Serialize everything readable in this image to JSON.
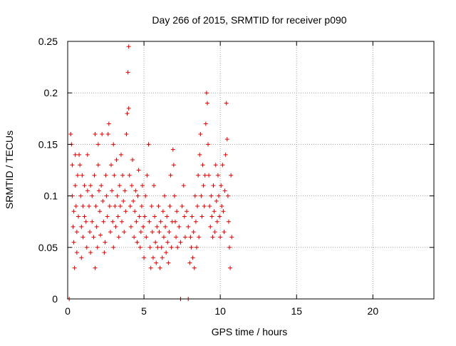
{
  "chart_data": {
    "type": "scatter",
    "title": "Day 266 of 2015, SRMTID for receiver p090",
    "xlabel": "GPS time / hours",
    "ylabel": "SRMTID / TECUs",
    "xlim": [
      0,
      24
    ],
    "ylim": [
      0,
      0.25
    ],
    "grid": true,
    "marker": "+",
    "color": "#e00000",
    "x_ticks": [
      {
        "value": 0,
        "label": "0"
      },
      {
        "value": 5,
        "label": "5"
      },
      {
        "value": 10,
        "label": "10"
      },
      {
        "value": 15,
        "label": "15"
      },
      {
        "value": 20,
        "label": "20"
      }
    ],
    "y_ticks": [
      {
        "value": 0,
        "label": "0"
      },
      {
        "value": 0.05,
        "label": "0.05"
      },
      {
        "value": 0.1,
        "label": "0.1"
      },
      {
        "value": 0.15,
        "label": "0.15"
      },
      {
        "value": 0.2,
        "label": "0.2"
      },
      {
        "value": 0.25,
        "label": "0.25"
      }
    ],
    "points": [
      [
        0.1,
        0.0
      ],
      [
        7.4,
        0.0
      ],
      [
        7.9,
        0.0
      ],
      [
        0.2,
        0.16
      ],
      [
        0.25,
        0.15
      ],
      [
        0.3,
        0.1
      ],
      [
        0.3,
        0.13
      ],
      [
        0.35,
        0.07
      ],
      [
        0.4,
        0.085
      ],
      [
        0.4,
        0.055
      ],
      [
        0.45,
        0.03
      ],
      [
        0.5,
        0.11
      ],
      [
        0.5,
        0.14
      ],
      [
        0.55,
        0.09
      ],
      [
        0.6,
        0.065
      ],
      [
        0.6,
        0.045
      ],
      [
        0.65,
        0.12
      ],
      [
        0.7,
        0.08
      ],
      [
        0.75,
        0.14
      ],
      [
        0.8,
        0.13
      ],
      [
        0.85,
        0.1
      ],
      [
        0.9,
        0.07
      ],
      [
        0.9,
        0.04
      ],
      [
        0.95,
        0.12
      ],
      [
        1.0,
        0.09
      ],
      [
        1.0,
        0.06
      ],
      [
        1.1,
        0.08
      ],
      [
        1.1,
        0.11
      ],
      [
        1.2,
        0.075
      ],
      [
        1.25,
        0.05
      ],
      [
        1.3,
        0.105
      ],
      [
        1.3,
        0.14
      ],
      [
        1.4,
        0.09
      ],
      [
        1.45,
        0.065
      ],
      [
        1.5,
        0.045
      ],
      [
        1.5,
        0.11
      ],
      [
        1.6,
        0.1
      ],
      [
        1.6,
        0.075
      ],
      [
        1.7,
        0.06
      ],
      [
        1.75,
        0.12
      ],
      [
        1.8,
        0.16
      ],
      [
        1.8,
        0.03
      ],
      [
        1.85,
        0.09
      ],
      [
        1.9,
        0.07
      ],
      [
        1.95,
        0.05
      ],
      [
        2.0,
        0.15
      ],
      [
        2.0,
        0.13
      ],
      [
        2.05,
        0.105
      ],
      [
        2.1,
        0.085
      ],
      [
        2.15,
        0.062
      ],
      [
        2.2,
        0.11
      ],
      [
        2.25,
        0.16
      ],
      [
        2.3,
        0.095
      ],
      [
        2.35,
        0.075
      ],
      [
        2.4,
        0.045
      ],
      [
        2.45,
        0.055
      ],
      [
        2.5,
        0.12
      ],
      [
        2.55,
        0.1
      ],
      [
        2.6,
        0.08
      ],
      [
        2.65,
        0.16
      ],
      [
        2.7,
        0.17
      ],
      [
        2.75,
        0.09
      ],
      [
        2.8,
        0.065
      ],
      [
        2.85,
        0.13
      ],
      [
        2.9,
        0.105
      ],
      [
        2.95,
        0.075
      ],
      [
        3.0,
        0.05
      ],
      [
        3.0,
        0.15
      ],
      [
        3.05,
        0.12
      ],
      [
        3.1,
        0.09
      ],
      [
        3.15,
        0.07
      ],
      [
        3.2,
        0.135
      ],
      [
        3.25,
        0.1
      ],
      [
        3.3,
        0.08
      ],
      [
        3.35,
        0.06
      ],
      [
        3.4,
        0.11
      ],
      [
        3.45,
        0.09
      ],
      [
        3.5,
        0.14
      ],
      [
        3.55,
        0.075
      ],
      [
        3.6,
        0.12
      ],
      [
        3.65,
        0.095
      ],
      [
        3.7,
        0.065
      ],
      [
        3.75,
        0.105
      ],
      [
        3.8,
        0.085
      ],
      [
        3.85,
        0.16
      ],
      [
        3.9,
        0.18
      ],
      [
        3.95,
        0.22
      ],
      [
        4.0,
        0.245
      ],
      [
        4.0,
        0.185
      ],
      [
        4.05,
        0.12
      ],
      [
        4.1,
        0.09
      ],
      [
        4.15,
        0.07
      ],
      [
        4.2,
        0.11
      ],
      [
        4.25,
        0.135
      ],
      [
        4.3,
        0.095
      ],
      [
        4.35,
        0.06
      ],
      [
        4.4,
        0.085
      ],
      [
        4.45,
        0.105
      ],
      [
        4.5,
        0.075
      ],
      [
        4.55,
        0.055
      ],
      [
        4.6,
        0.1
      ],
      [
        4.65,
        0.125
      ],
      [
        4.7,
        0.08
      ],
      [
        4.75,
        0.05
      ],
      [
        4.8,
        0.065
      ],
      [
        4.85,
        0.09
      ],
      [
        4.9,
        0.11
      ],
      [
        4.95,
        0.07
      ],
      [
        5.0,
        0.04
      ],
      [
        5.05,
        0.08
      ],
      [
        5.1,
        0.1
      ],
      [
        5.15,
        0.06
      ],
      [
        5.2,
        0.12
      ],
      [
        5.3,
        0.15
      ],
      [
        5.35,
        0.075
      ],
      [
        5.4,
        0.05
      ],
      [
        5.45,
        0.03
      ],
      [
        5.5,
        0.09
      ],
      [
        5.55,
        0.065
      ],
      [
        5.6,
        0.04
      ],
      [
        5.65,
        0.11
      ],
      [
        5.7,
        0.08
      ],
      [
        5.75,
        0.055
      ],
      [
        5.8,
        0.035
      ],
      [
        5.85,
        0.07
      ],
      [
        5.9,
        0.05
      ],
      [
        5.95,
        0.09
      ],
      [
        6.0,
        0.065
      ],
      [
        6.05,
        0.03
      ],
      [
        6.1,
        0.075
      ],
      [
        6.15,
        0.05
      ],
      [
        6.2,
        0.04
      ],
      [
        6.25,
        0.085
      ],
      [
        6.3,
        0.06
      ],
      [
        6.35,
        0.1
      ],
      [
        6.4,
        0.07
      ],
      [
        6.45,
        0.045
      ],
      [
        6.5,
        0.08
      ],
      [
        6.55,
        0.055
      ],
      [
        6.6,
        0.035
      ],
      [
        6.65,
        0.065
      ],
      [
        6.7,
        0.09
      ],
      [
        6.75,
        0.12
      ],
      [
        6.8,
        0.05
      ],
      [
        6.85,
        0.075
      ],
      [
        6.9,
        0.145
      ],
      [
        6.95,
        0.13
      ],
      [
        7.0,
        0.1
      ],
      [
        7.05,
        0.075
      ],
      [
        7.1,
        0.06
      ],
      [
        7.15,
        0.085
      ],
      [
        7.2,
        0.05
      ],
      [
        7.3,
        0.07
      ],
      [
        7.4,
        0.055
      ],
      [
        7.5,
        0.09
      ],
      [
        7.6,
        0.11
      ],
      [
        7.65,
        0.08
      ],
      [
        7.7,
        0.06
      ],
      [
        7.8,
        0.085
      ],
      [
        7.9,
        0.07
      ],
      [
        8.0,
        0.035
      ],
      [
        8.05,
        0.06
      ],
      [
        8.1,
        0.05
      ],
      [
        8.15,
        0.08
      ],
      [
        8.2,
        0.04
      ],
      [
        8.25,
        0.065
      ],
      [
        8.3,
        0.03
      ],
      [
        8.35,
        0.1
      ],
      [
        8.4,
        0.075
      ],
      [
        8.45,
        0.05
      ],
      [
        8.5,
        0.09
      ],
      [
        8.55,
        0.12
      ],
      [
        8.6,
        0.06
      ],
      [
        8.65,
        0.14
      ],
      [
        8.7,
        0.16
      ],
      [
        8.75,
        0.1
      ],
      [
        8.8,
        0.08
      ],
      [
        8.85,
        0.13
      ],
      [
        8.9,
        0.11
      ],
      [
        8.95,
        0.09
      ],
      [
        9.0,
        0.12
      ],
      [
        9.05,
        0.17
      ],
      [
        9.1,
        0.2
      ],
      [
        9.15,
        0.19
      ],
      [
        9.2,
        0.15
      ],
      [
        9.25,
        0.12
      ],
      [
        9.3,
        0.09
      ],
      [
        9.35,
        0.07
      ],
      [
        9.4,
        0.1
      ],
      [
        9.45,
        0.08
      ],
      [
        9.5,
        0.06
      ],
      [
        9.55,
        0.11
      ],
      [
        9.6,
        0.085
      ],
      [
        9.65,
        0.065
      ],
      [
        9.7,
        0.13
      ],
      [
        9.75,
        0.095
      ],
      [
        9.8,
        0.075
      ],
      [
        9.85,
        0.12
      ],
      [
        9.9,
        0.1
      ],
      [
        9.95,
        0.08
      ],
      [
        10.0,
        0.06
      ],
      [
        10.05,
        0.11
      ],
      [
        10.1,
        0.09
      ],
      [
        10.15,
        0.13
      ],
      [
        10.2,
        0.085
      ],
      [
        10.25,
        0.065
      ],
      [
        10.3,
        0.105
      ],
      [
        10.35,
        0.14
      ],
      [
        10.4,
        0.19
      ],
      [
        10.45,
        0.155
      ],
      [
        10.5,
        0.1
      ],
      [
        10.55,
        0.075
      ],
      [
        10.6,
        0.05
      ],
      [
        10.65,
        0.03
      ],
      [
        10.7,
        0.12
      ],
      [
        10.75,
        0.06
      ]
    ]
  }
}
